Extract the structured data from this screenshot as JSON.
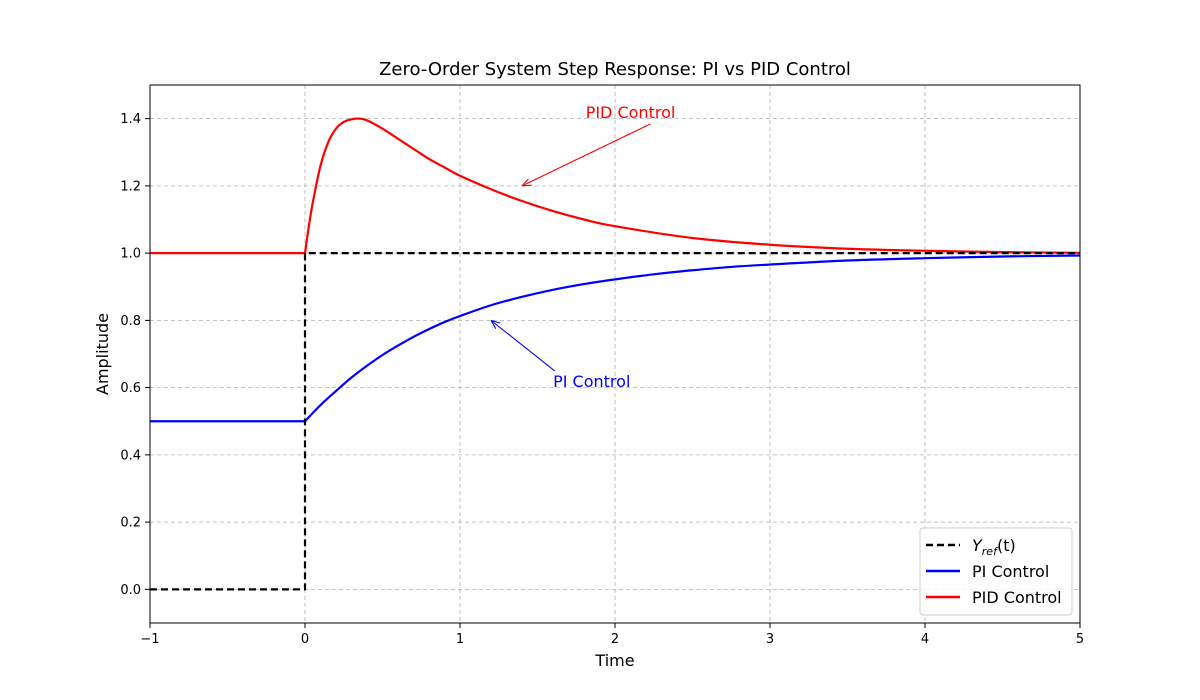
{
  "chart_data": {
    "type": "line",
    "title": "Zero-Order System Step Response: PI vs PID Control",
    "xlabel": "Time",
    "ylabel": "Amplitude",
    "xlim": [
      -1,
      5
    ],
    "ylim": [
      -0.1,
      1.5
    ],
    "xticks": [
      -1,
      0,
      1,
      2,
      3,
      4,
      5
    ],
    "xtick_labels": [
      "−1",
      "0",
      "1",
      "2",
      "3",
      "4",
      "5"
    ],
    "yticks": [
      0.0,
      0.2,
      0.4,
      0.6,
      0.8,
      1.0,
      1.2,
      1.4
    ],
    "ytick_labels": [
      "0.0",
      "0.2",
      "0.4",
      "0.6",
      "0.8",
      "1.0",
      "1.2",
      "1.4"
    ],
    "grid": true,
    "legend_position": "bottom-right",
    "series": [
      {
        "name": "Y_ref(t)",
        "legend_main": "Y",
        "legend_sub": "ref",
        "legend_suffix": "(t)",
        "color": "#000000",
        "style": "dashed",
        "x": [
          -1,
          0,
          0,
          5
        ],
        "y": [
          0,
          0,
          1,
          1
        ]
      },
      {
        "name": "PI Control",
        "color": "#0000ff",
        "style": "solid",
        "x": [
          -1,
          0,
          0.1,
          0.2,
          0.3,
          0.4,
          0.5,
          0.6,
          0.7,
          0.8,
          0.9,
          1.0,
          1.2,
          1.4,
          1.6,
          1.8,
          2.0,
          2.25,
          2.5,
          2.75,
          3.0,
          3.5,
          4.0,
          4.5,
          5.0
        ],
        "y": [
          0.5,
          0.5,
          0.548,
          0.59,
          0.63,
          0.665,
          0.697,
          0.725,
          0.751,
          0.774,
          0.795,
          0.813,
          0.845,
          0.87,
          0.891,
          0.908,
          0.922,
          0.937,
          0.949,
          0.959,
          0.966,
          0.978,
          0.985,
          0.99,
          0.993
        ]
      },
      {
        "name": "PID Control",
        "color": "#ff0000",
        "style": "solid",
        "x": [
          -1,
          0,
          0.025,
          0.05,
          0.1,
          0.15,
          0.2,
          0.25,
          0.3,
          0.35,
          0.4,
          0.5,
          0.6,
          0.7,
          0.8,
          0.9,
          1.0,
          1.2,
          1.4,
          1.6,
          1.8,
          2.0,
          2.5,
          3.0,
          3.5,
          4.0,
          4.5,
          5.0
        ],
        "y": [
          1.0,
          1.0,
          1.08,
          1.15,
          1.26,
          1.33,
          1.37,
          1.39,
          1.398,
          1.4,
          1.395,
          1.37,
          1.34,
          1.31,
          1.28,
          1.255,
          1.23,
          1.19,
          1.155,
          1.125,
          1.1,
          1.08,
          1.045,
          1.025,
          1.013,
          1.007,
          1.003,
          1.001
        ]
      }
    ],
    "annotations": [
      {
        "text": "PID Control",
        "color": "#ff0000",
        "text_x": 2.1,
        "text_y": 1.42,
        "arrow_to_x": 1.4,
        "arrow_to_y": 1.2
      },
      {
        "text": "PI Control",
        "color": "#0000ff",
        "text_x": 1.85,
        "text_y": 0.62,
        "arrow_to_x": 1.2,
        "arrow_to_y": 0.8
      }
    ]
  }
}
